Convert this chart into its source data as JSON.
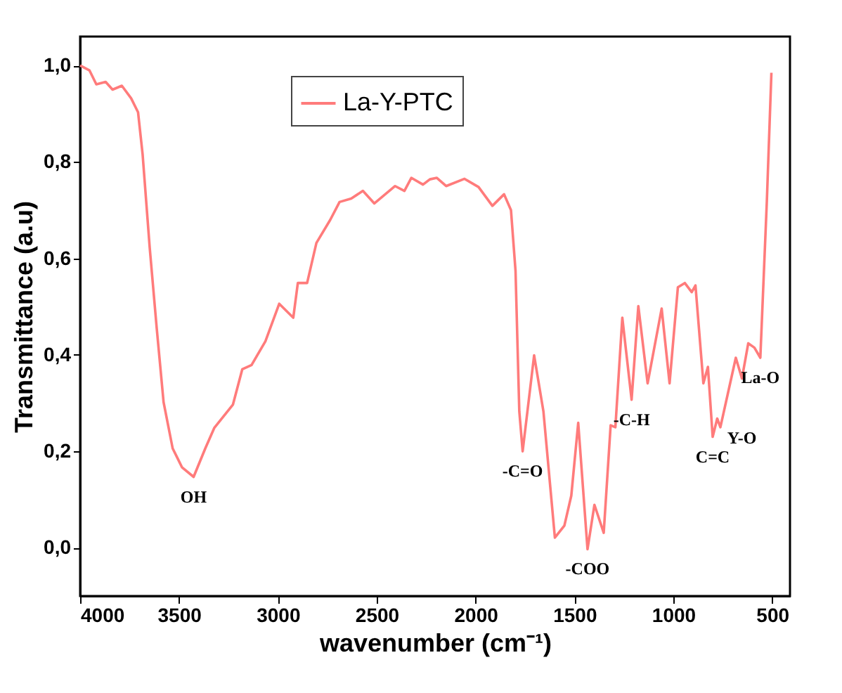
{
  "chart_data": {
    "type": "line",
    "xlabel": "wavenumber (cm⁻¹)",
    "ylabel": "Transmittance (a.u)",
    "x": [
      4000,
      3953,
      3918,
      3871,
      3836,
      3789,
      3742,
      3707,
      3684,
      3648,
      3613,
      3578,
      3532,
      3485,
      3426,
      3367,
      3321,
      3227,
      3180,
      3133,
      3063,
      2993,
      2922,
      2899,
      2852,
      2805,
      2735,
      2688,
      2629,
      2570,
      2512,
      2407,
      2360,
      2325,
      2266,
      2231,
      2196,
      2149,
      2056,
      1985,
      1915,
      1856,
      1821,
      1798,
      1779,
      1762,
      1704,
      1657,
      1599,
      1551,
      1516,
      1481,
      1434,
      1399,
      1352,
      1317,
      1293,
      1258,
      1211,
      1177,
      1130,
      1059,
      1019,
      977,
      942,
      907,
      888,
      848,
      825,
      801,
      778,
      762,
      684,
      653,
      621,
      590,
      560,
      527,
      504
    ],
    "series": [
      {
        "name": "La-Y-PTC",
        "color": "#ff7b7b",
        "values": [
          1.0,
          0.99,
          0.961,
          0.966,
          0.95,
          0.958,
          0.932,
          0.903,
          0.816,
          0.622,
          0.457,
          0.302,
          0.206,
          0.167,
          0.147,
          0.206,
          0.249,
          0.297,
          0.37,
          0.379,
          0.428,
          0.506,
          0.477,
          0.549,
          0.549,
          0.632,
          0.68,
          0.717,
          0.724,
          0.74,
          0.714,
          0.75,
          0.74,
          0.767,
          0.753,
          0.764,
          0.767,
          0.75,
          0.765,
          0.748,
          0.709,
          0.733,
          0.7,
          0.574,
          0.283,
          0.2,
          0.399,
          0.283,
          0.021,
          0.046,
          0.108,
          0.259,
          -0.003,
          0.089,
          0.031,
          0.254,
          0.25,
          0.477,
          0.307,
          0.501,
          0.341,
          0.496,
          0.341,
          0.54,
          0.549,
          0.53,
          0.544,
          0.341,
          0.375,
          0.23,
          0.268,
          0.25,
          0.394,
          0.351,
          0.424,
          0.415,
          0.394,
          0.719,
          0.985
        ]
      }
    ],
    "xlim": [
      4000,
      410
    ],
    "ylim": [
      -0.1,
      1.06
    ],
    "xticks": [
      4000,
      3500,
      3000,
      2500,
      2000,
      1500,
      1000,
      500
    ],
    "yticks": [
      {
        "value": 0,
        "label": "0,0"
      },
      {
        "value": 0.2,
        "label": "0,2"
      },
      {
        "value": 0.4,
        "label": "0,4"
      },
      {
        "value": 0.6,
        "label": "0,6"
      },
      {
        "value": 0.8,
        "label": "0,8"
      },
      {
        "value": 1.0,
        "label": "1,0"
      }
    ],
    "grid": false,
    "legend": "top",
    "line_style": "solid",
    "annotations": [
      {
        "text": "OH",
        "x": 3426,
        "y": 0.147
      },
      {
        "text": "-C=O",
        "x": 1762,
        "y": 0.2
      },
      {
        "text": "-COO",
        "x": 1434,
        "y": -0.003
      },
      {
        "text": "-C-H",
        "x": 1211,
        "y": 0.307
      },
      {
        "text": "C=C",
        "x": 801,
        "y": 0.23
      },
      {
        "text": "La-O",
        "x": 560,
        "y": 0.394
      },
      {
        "text": "Y-O",
        "x": 653,
        "y": 0.351
      }
    ]
  }
}
